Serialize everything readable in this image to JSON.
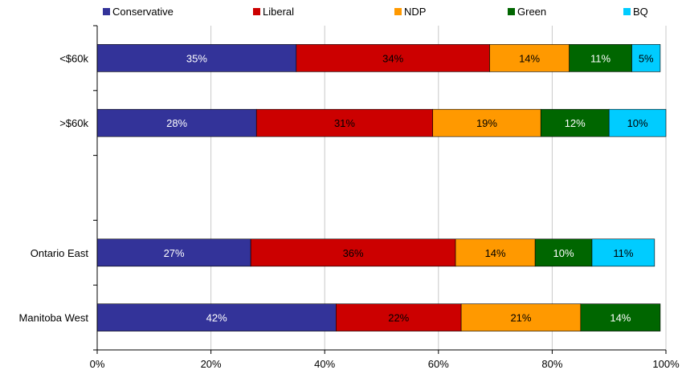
{
  "chart_data": {
    "type": "bar",
    "orientation": "horizontal",
    "stacked": true,
    "categories": [
      "<$60k",
      ">$60k",
      "",
      "Ontario East",
      "Manitoba West"
    ],
    "series": [
      {
        "name": "Conservative",
        "color": "#333399",
        "values": [
          35,
          28,
          null,
          27,
          42
        ],
        "labels": [
          "35%",
          "28%",
          "",
          "27%",
          "42%"
        ]
      },
      {
        "name": "Liberal",
        "color": "#CC0000",
        "values": [
          34,
          31,
          null,
          36,
          22
        ],
        "labels": [
          "34%",
          "31%",
          "",
          "36%",
          "22%"
        ]
      },
      {
        "name": "NDP",
        "color": "#FF9900",
        "values": [
          14,
          19,
          null,
          14,
          21
        ],
        "labels": [
          "14%",
          "19%",
          "",
          "14%",
          "21%"
        ]
      },
      {
        "name": "Green",
        "color": "#006600",
        "values": [
          11,
          12,
          null,
          10,
          14
        ],
        "labels": [
          "11%",
          "12%",
          "",
          "10%",
          "14%"
        ]
      },
      {
        "name": "BQ",
        "color": "#00CCFF",
        "values": [
          5,
          10,
          null,
          11,
          0
        ],
        "labels": [
          "5%",
          "10%",
          "",
          "11%",
          ""
        ]
      }
    ],
    "xlim": [
      0,
      100
    ],
    "x_ticks": [
      "0%",
      "20%",
      "40%",
      "60%",
      "80%",
      "100%"
    ],
    "grid": true,
    "legend_position": "top"
  }
}
